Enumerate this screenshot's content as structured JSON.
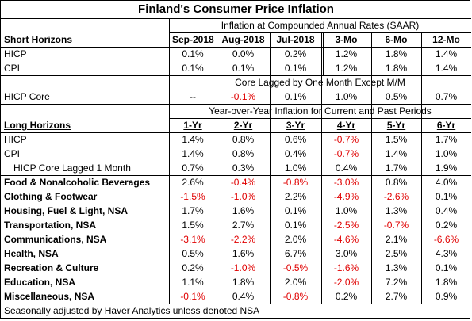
{
  "title": "Finland's Consumer Price Inflation",
  "short": {
    "subtitle": "Inflation at Compounded Annual Rates (SAAR)",
    "heading": "Short Horizons",
    "columns": [
      "Sep-2018",
      "Aug-2018",
      "Jul-2018",
      "3-Mo",
      "6-Mo",
      "12-Mo"
    ],
    "rows": [
      {
        "label": "HICP",
        "cells": [
          "0.1%",
          "0.0%",
          "0.2%",
          "1.2%",
          "1.8%",
          "1.4%"
        ]
      },
      {
        "label": "CPI",
        "cells": [
          "0.1%",
          "0.1%",
          "0.1%",
          "1.2%",
          "1.8%",
          "1.4%"
        ]
      }
    ],
    "core_note": "Core Lagged by One Month Except M/M",
    "core_row": {
      "label": "HICP Core",
      "cells": [
        "--",
        "-0.1%",
        "0.1%",
        "1.0%",
        "0.5%",
        "0.7%"
      ]
    }
  },
  "long": {
    "subtitle": "Year-over-Year Inflation for Current and Past Periods",
    "heading": "Long Horizons",
    "columns": [
      "1-Yr",
      "2-Yr",
      "3-Yr",
      "4-Yr",
      "5-Yr",
      "6-Yr"
    ],
    "rows": [
      {
        "label": "HICP",
        "cells": [
          "1.4%",
          "0.8%",
          "0.6%",
          "-0.7%",
          "1.5%",
          "1.7%"
        ]
      },
      {
        "label": "CPI",
        "cells": [
          "1.4%",
          "0.8%",
          "0.4%",
          "-0.7%",
          "1.4%",
          "1.0%"
        ]
      },
      {
        "label": "HICP Core Lagged 1 Month",
        "cells": [
          "0.7%",
          "0.3%",
          "1.0%",
          "0.4%",
          "1.7%",
          "1.9%"
        ]
      },
      {
        "label": "Food & Nonalcoholic Beverages",
        "cells": [
          "2.6%",
          "-0.4%",
          "-0.8%",
          "-3.0%",
          "0.8%",
          "4.0%"
        ]
      },
      {
        "label": "Clothing & Footwear",
        "cells": [
          "-1.5%",
          "-1.0%",
          "2.2%",
          "-4.9%",
          "-2.6%",
          "0.1%"
        ]
      },
      {
        "label": "Housing, Fuel & Light, NSA",
        "cells": [
          "1.7%",
          "1.6%",
          "0.1%",
          "1.0%",
          "1.3%",
          "0.4%"
        ]
      },
      {
        "label": "Transportation, NSA",
        "cells": [
          "1.5%",
          "2.7%",
          "0.1%",
          "-2.5%",
          "-0.7%",
          "0.2%"
        ]
      },
      {
        "label": "Communications, NSA",
        "cells": [
          "-3.1%",
          "-2.2%",
          "2.0%",
          "-4.6%",
          "2.1%",
          "-6.6%"
        ]
      },
      {
        "label": "Health, NSA",
        "cells": [
          "0.5%",
          "1.6%",
          "6.7%",
          "3.0%",
          "2.5%",
          "4.3%"
        ]
      },
      {
        "label": "Recreation & Culture",
        "cells": [
          "0.2%",
          "-1.0%",
          "-0.5%",
          "-1.6%",
          "1.3%",
          "0.1%"
        ]
      },
      {
        "label": "Education, NSA",
        "cells": [
          "1.1%",
          "1.8%",
          "2.0%",
          "-2.0%",
          "7.2%",
          "1.8%"
        ]
      },
      {
        "label": "Miscellaneous, NSA",
        "cells": [
          "-0.1%",
          "0.4%",
          "-0.8%",
          "0.2%",
          "2.7%",
          "0.9%"
        ]
      }
    ]
  },
  "footer": "Seasonally adjusted by Haver Analytics unless denoted NSA"
}
